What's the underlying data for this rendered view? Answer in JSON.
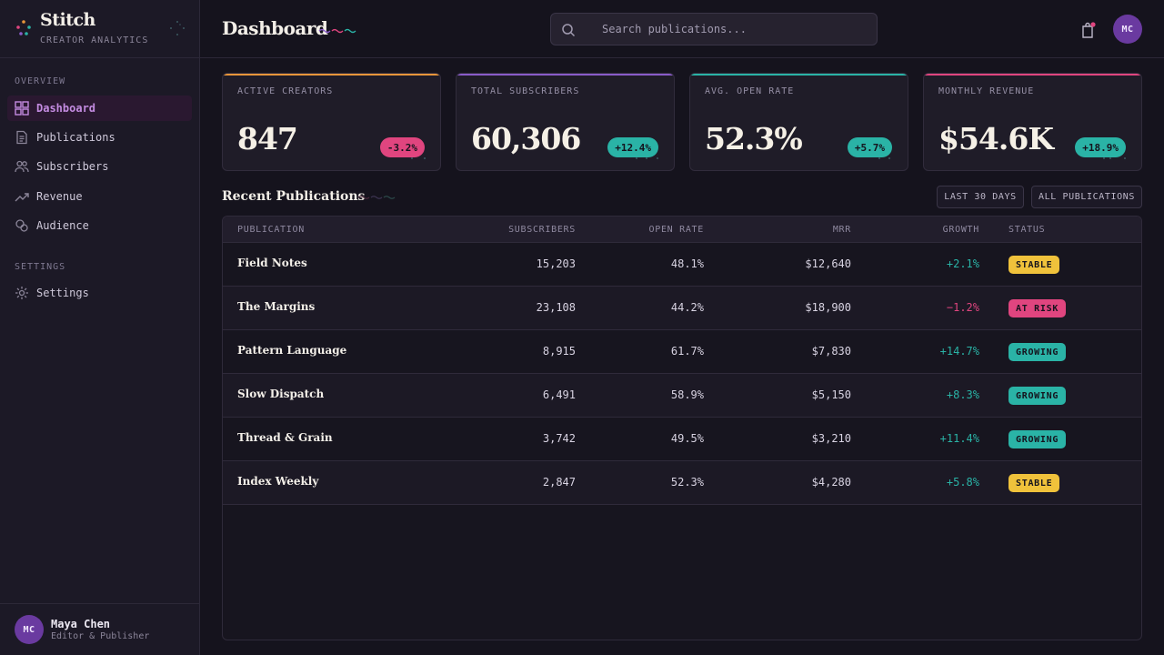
{
  "app": {
    "name": "Stitch",
    "subtitle": "CREATOR ANALYTICS"
  },
  "sidebar": {
    "sections": [
      {
        "label": "OVERVIEW"
      },
      {
        "label": "SETTINGS"
      }
    ],
    "items": [
      {
        "label": "Dashboard",
        "icon": "grid-icon",
        "active": true
      },
      {
        "label": "Publications",
        "icon": "document-icon"
      },
      {
        "label": "Subscribers",
        "icon": "users-icon"
      },
      {
        "label": "Revenue",
        "icon": "trend-icon"
      },
      {
        "label": "Audience",
        "icon": "circles-icon"
      },
      {
        "label": "Settings",
        "icon": "gear-icon"
      }
    ],
    "user": {
      "initials": "MC",
      "name": "Maya Chen",
      "role": "Editor & Publisher"
    }
  },
  "header": {
    "title": "Dashboard",
    "search_placeholder": "Search publications...",
    "avatar_initials": "MC"
  },
  "colors": {
    "orange": "#e8963a",
    "purple": "#8a5cc9",
    "teal": "#2ab3a6",
    "pink": "#e0457f",
    "yellow": "#f0c23b"
  },
  "stats": [
    {
      "label": "ACTIVE CREATORS",
      "value": "847",
      "change": "-3.2%",
      "trend": "down",
      "accent": "#e8963a"
    },
    {
      "label": "TOTAL SUBSCRIBERS",
      "value": "60,306",
      "change": "+12.4%",
      "trend": "up",
      "accent": "#8a5cc9"
    },
    {
      "label": "AVG. OPEN RATE",
      "value": "52.3%",
      "change": "+5.7%",
      "trend": "up",
      "accent": "#2ab3a6"
    },
    {
      "label": "MONTHLY REVENUE",
      "value": "$54.6K",
      "change": "+18.9%",
      "trend": "up",
      "accent": "#e0457f"
    }
  ],
  "recent": {
    "title": "Recent Publications",
    "filters": [
      "LAST 30 DAYS",
      "ALL PUBLICATIONS"
    ],
    "columns": [
      "PUBLICATION",
      "SUBSCRIBERS",
      "OPEN RATE",
      "MRR",
      "GROWTH",
      "STATUS"
    ],
    "rows": [
      {
        "name": "Field Notes",
        "subscribers": "15,203",
        "open_rate": "48.1%",
        "mrr": "$12,640",
        "growth": "+2.1%",
        "status": "STABLE"
      },
      {
        "name": "The Margins",
        "subscribers": "23,108",
        "open_rate": "44.2%",
        "mrr": "$18,900",
        "growth": "−1.2%",
        "status": "AT RISK"
      },
      {
        "name": "Pattern Language",
        "subscribers": "8,915",
        "open_rate": "61.7%",
        "mrr": "$7,830",
        "growth": "+14.7%",
        "status": "GROWING"
      },
      {
        "name": "Slow Dispatch",
        "subscribers": "6,491",
        "open_rate": "58.9%",
        "mrr": "$5,150",
        "growth": "+8.3%",
        "status": "GROWING"
      },
      {
        "name": "Thread & Grain",
        "subscribers": "3,742",
        "open_rate": "49.5%",
        "mrr": "$3,210",
        "growth": "+11.4%",
        "status": "GROWING"
      },
      {
        "name": "Index Weekly",
        "subscribers": "2,847",
        "open_rate": "52.3%",
        "mrr": "$4,280",
        "growth": "+5.8%",
        "status": "STABLE"
      }
    ]
  }
}
